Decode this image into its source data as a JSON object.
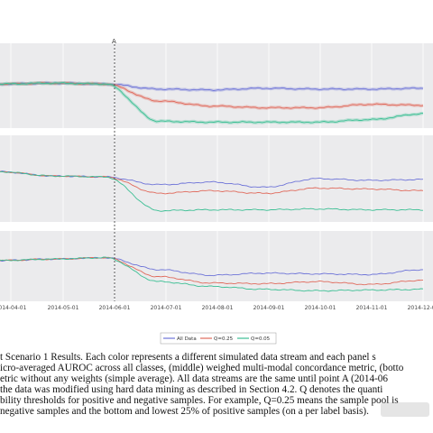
{
  "figure": {
    "point_label": "A",
    "x_tick_labels": [
      "2014-04-01",
      "2014-05-01",
      "2014-06-01",
      "2014-07-01",
      "2014-08-01",
      "2014-09-01",
      "2014-10-01",
      "2014-11-01",
      "2014-12-01"
    ],
    "legend": [
      "All Data",
      "Q=0.25",
      "Q=0.05"
    ],
    "colors": {
      "all_data": "#6e74d8",
      "q025": "#e06a5c",
      "q005": "#3cbf94",
      "panel_bg": "#ebebed",
      "grid": "#ffffff",
      "baseline": "#8a8a8a"
    }
  },
  "chart_data": [
    {
      "type": "line",
      "x": [
        "2014-04-01",
        "2014-05-01",
        "2014-06-01",
        "2014-07-01",
        "2014-08-01",
        "2014-09-01",
        "2014-10-01",
        "2014-11-01",
        "2014-12-01"
      ],
      "series": [
        {
          "name": "All Data",
          "values": [
            0.48,
            0.47,
            0.48,
            0.54,
            0.55,
            0.53,
            0.54,
            0.54,
            0.53
          ]
        },
        {
          "name": "Q=0.25",
          "values": [
            0.48,
            0.47,
            0.48,
            0.68,
            0.74,
            0.76,
            0.76,
            0.72,
            0.73
          ]
        },
        {
          "name": "Q=0.05",
          "values": [
            0.48,
            0.47,
            0.48,
            0.92,
            0.93,
            0.93,
            0.93,
            0.9,
            0.83
          ]
        }
      ]
    },
    {
      "type": "line",
      "x": [
        "2014-04-01",
        "2014-05-01",
        "2014-06-01",
        "2014-07-01",
        "2014-08-01",
        "2014-09-01",
        "2014-10-01",
        "2014-11-01",
        "2014-12-01"
      ],
      "series": [
        {
          "name": "All Data",
          "values": [
            0.42,
            0.47,
            0.48,
            0.57,
            0.54,
            0.6,
            0.5,
            0.52,
            0.51
          ]
        },
        {
          "name": "Q=0.25",
          "values": [
            0.42,
            0.47,
            0.48,
            0.67,
            0.64,
            0.67,
            0.61,
            0.62,
            0.64
          ]
        },
        {
          "name": "Q=0.05",
          "values": [
            0.42,
            0.47,
            0.48,
            0.87,
            0.86,
            0.86,
            0.85,
            0.86,
            0.86
          ]
        }
      ]
    },
    {
      "type": "line",
      "x": [
        "2014-04-01",
        "2014-05-01",
        "2014-06-01",
        "2014-07-01",
        "2014-08-01",
        "2014-09-01",
        "2014-10-01",
        "2014-11-01",
        "2014-12-01"
      ],
      "series": [
        {
          "name": "All Data",
          "values": [
            0.42,
            0.4,
            0.38,
            0.55,
            0.63,
            0.6,
            0.61,
            0.62,
            0.55
          ]
        },
        {
          "name": "Q=0.25",
          "values": [
            0.42,
            0.4,
            0.38,
            0.65,
            0.74,
            0.75,
            0.72,
            0.76,
            0.7
          ]
        },
        {
          "name": "Q=0.05",
          "values": [
            0.42,
            0.4,
            0.38,
            0.72,
            0.79,
            0.83,
            0.85,
            0.84,
            0.83
          ]
        }
      ]
    }
  ],
  "caption": {
    "lines": [
      "t Scenario 1 Results.  Each color represents a different simulated data stream and each panel s",
      "icro-averaged AUROC across all classes, (middle) weighed multi-modal concordance metric, (botto",
      "etric without any weights (simple average). All data streams are the same until point A (2014-06",
      " the data was modified using hard data mining as described in Section 4.2.  Q denotes the quanti",
      "bility thresholds for positive and negative samples. For example, Q=0.25 means the sample pool is",
      "negative samples and the bottom and lowest 25% of positive samples (on a per label basis)."
    ]
  }
}
